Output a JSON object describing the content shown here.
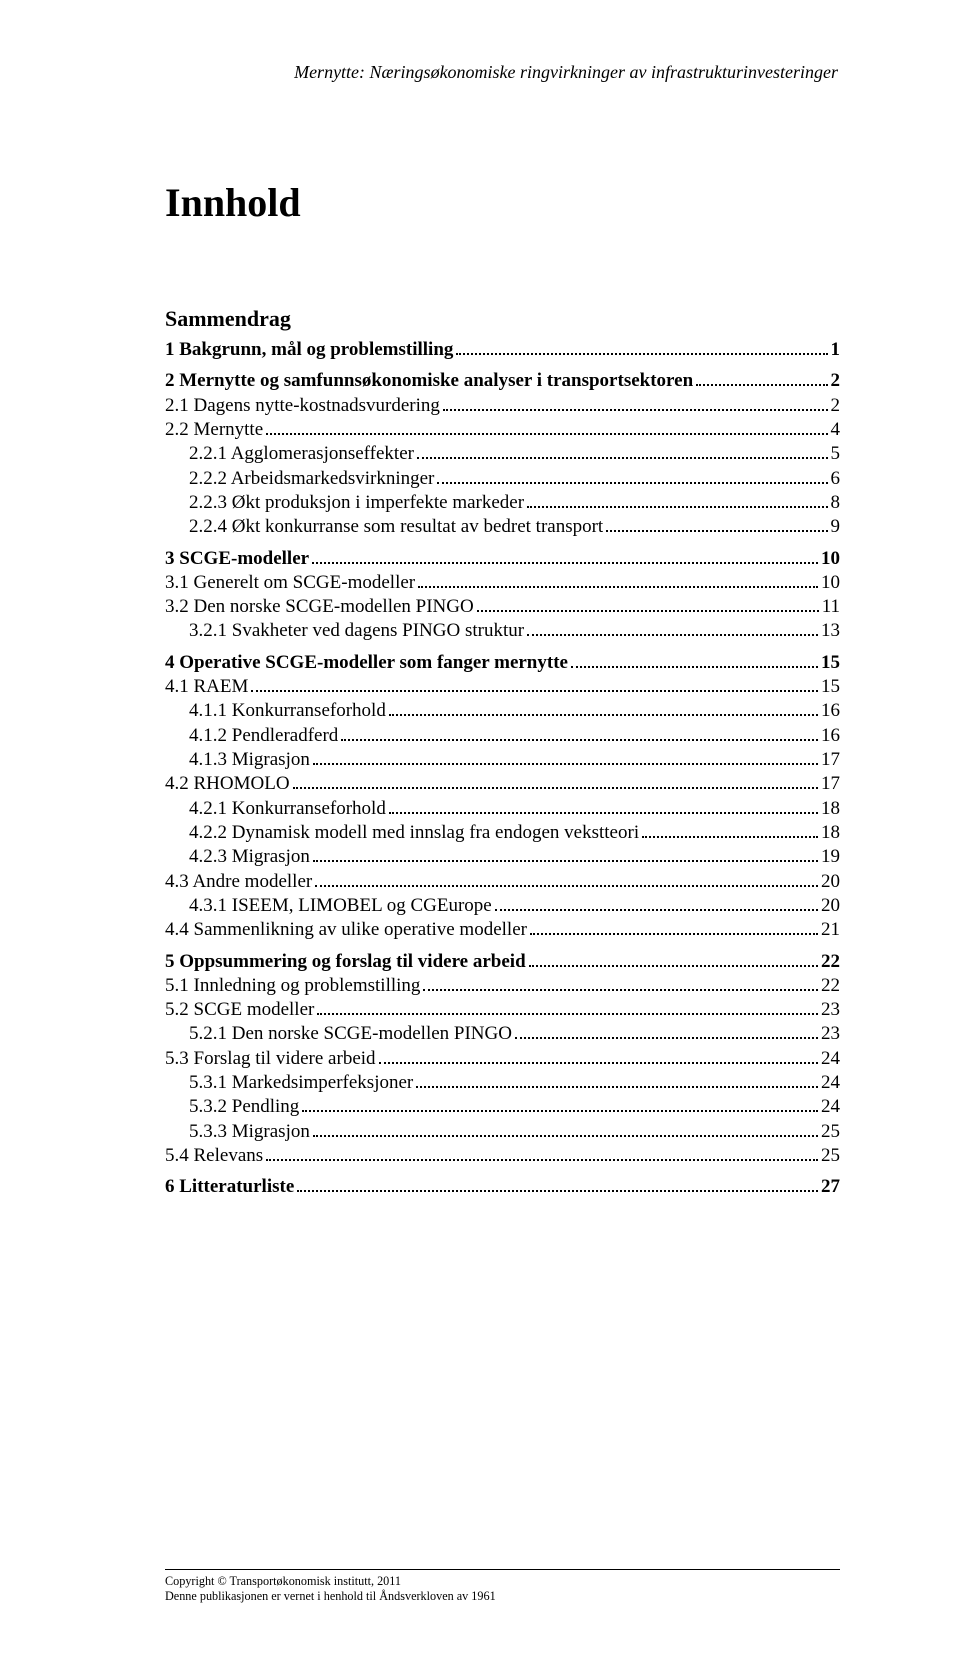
{
  "running_header": "Mernytte: Næringsøkonomiske ringvirkninger av infrastrukturinvesteringer",
  "main_title": "Innhold",
  "summary_label": "Sammendrag",
  "toc": [
    {
      "type": "row",
      "indent": 0,
      "bold": true,
      "label": "1 Bakgrunn, mål og problemstilling",
      "page": "1"
    },
    {
      "type": "gap"
    },
    {
      "type": "row",
      "indent": 0,
      "bold": true,
      "label": "2 Mernytte og samfunnsøkonomiske analyser i transportsektoren",
      "page": "2"
    },
    {
      "type": "row",
      "indent": 0,
      "bold": false,
      "label": "2.1 Dagens nytte-kostnadsvurdering",
      "page": "2"
    },
    {
      "type": "row",
      "indent": 0,
      "bold": false,
      "label": "2.2 Mernytte",
      "page": "4"
    },
    {
      "type": "row",
      "indent": 1,
      "bold": false,
      "label": "2.2.1 Agglomerasjonseffekter",
      "page": "5"
    },
    {
      "type": "row",
      "indent": 1,
      "bold": false,
      "label": "2.2.2 Arbeidsmarkedsvirkninger",
      "page": "6"
    },
    {
      "type": "row",
      "indent": 1,
      "bold": false,
      "label": "2.2.3 Økt produksjon i imperfekte markeder",
      "page": "8"
    },
    {
      "type": "row",
      "indent": 1,
      "bold": false,
      "label": "2.2.4 Økt konkurranse som resultat av bedret transport",
      "page": "9"
    },
    {
      "type": "gap"
    },
    {
      "type": "row",
      "indent": 0,
      "bold": true,
      "label": "3 SCGE-modeller",
      "page": "10"
    },
    {
      "type": "row",
      "indent": 0,
      "bold": false,
      "label": "3.1 Generelt om SCGE-modeller",
      "page": "10"
    },
    {
      "type": "row",
      "indent": 0,
      "bold": false,
      "label": "3.2 Den norske SCGE-modellen PINGO",
      "page": "11"
    },
    {
      "type": "row",
      "indent": 1,
      "bold": false,
      "label": "3.2.1 Svakheter ved dagens PINGO struktur",
      "page": "13"
    },
    {
      "type": "gap"
    },
    {
      "type": "row",
      "indent": 0,
      "bold": true,
      "label": "4 Operative SCGE-modeller som fanger mernytte",
      "page": "15"
    },
    {
      "type": "row",
      "indent": 0,
      "bold": false,
      "label": "4.1 RAEM",
      "page": "15"
    },
    {
      "type": "row",
      "indent": 1,
      "bold": false,
      "label": "4.1.1 Konkurranseforhold",
      "page": "16"
    },
    {
      "type": "row",
      "indent": 1,
      "bold": false,
      "label": "4.1.2 Pendleradferd",
      "page": "16"
    },
    {
      "type": "row",
      "indent": 1,
      "bold": false,
      "label": "4.1.3 Migrasjon",
      "page": "17"
    },
    {
      "type": "row",
      "indent": 0,
      "bold": false,
      "label": "4.2 RHOMOLO",
      "page": "17"
    },
    {
      "type": "row",
      "indent": 1,
      "bold": false,
      "label": "4.2.1 Konkurranseforhold",
      "page": "18"
    },
    {
      "type": "row",
      "indent": 1,
      "bold": false,
      "label": "4.2.2 Dynamisk modell med innslag fra endogen vekstteori",
      "page": "18"
    },
    {
      "type": "row",
      "indent": 1,
      "bold": false,
      "label": "4.2.3 Migrasjon",
      "page": "19"
    },
    {
      "type": "row",
      "indent": 0,
      "bold": false,
      "label": "4.3 Andre modeller",
      "page": "20"
    },
    {
      "type": "row",
      "indent": 1,
      "bold": false,
      "label": "4.3.1 ISEEM, LIMOBEL og CGEurope",
      "page": "20"
    },
    {
      "type": "row",
      "indent": 0,
      "bold": false,
      "label": "4.4 Sammenlikning av ulike operative modeller",
      "page": "21"
    },
    {
      "type": "gap"
    },
    {
      "type": "row",
      "indent": 0,
      "bold": true,
      "label": "5 Oppsummering og forslag til videre arbeid",
      "page": "22"
    },
    {
      "type": "row",
      "indent": 0,
      "bold": false,
      "label": "5.1 Innledning og problemstilling",
      "page": "22"
    },
    {
      "type": "row",
      "indent": 0,
      "bold": false,
      "label": "5.2 SCGE modeller",
      "page": "23"
    },
    {
      "type": "row",
      "indent": 1,
      "bold": false,
      "label": "5.2.1 Den norske SCGE-modellen PINGO",
      "page": "23"
    },
    {
      "type": "row",
      "indent": 0,
      "bold": false,
      "label": "5.3 Forslag til videre arbeid",
      "page": "24"
    },
    {
      "type": "row",
      "indent": 1,
      "bold": false,
      "label": "5.3.1 Markedsimperfeksjoner",
      "page": "24"
    },
    {
      "type": "row",
      "indent": 1,
      "bold": false,
      "label": "5.3.2 Pendling",
      "page": "24"
    },
    {
      "type": "row",
      "indent": 1,
      "bold": false,
      "label": "5.3.3 Migrasjon",
      "page": "25"
    },
    {
      "type": "row",
      "indent": 0,
      "bold": false,
      "label": "5.4 Relevans",
      "page": "25"
    },
    {
      "type": "gap"
    },
    {
      "type": "row",
      "indent": 0,
      "bold": true,
      "label": "6 Litteraturliste",
      "page": "27"
    }
  ],
  "footer": {
    "line1": "Copyright © Transportøkonomisk institutt, 2011",
    "line2": "Denne publikasjonen er vernet i henhold til Åndsverkloven av 1961"
  }
}
